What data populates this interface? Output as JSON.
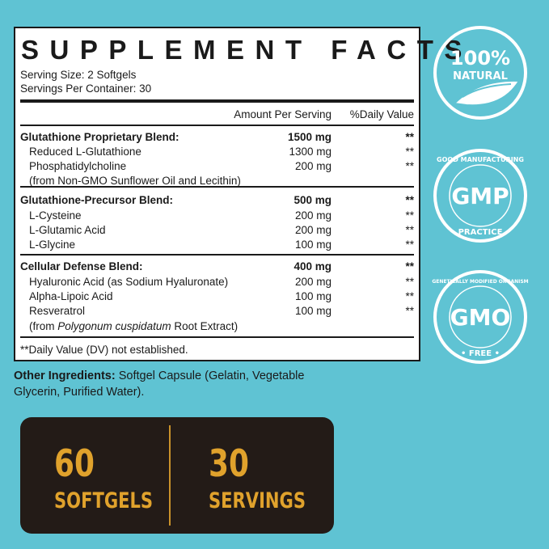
{
  "facts": {
    "title": "SUPPLEMENT FACTS",
    "serving_size": "Serving Size: 2 Softgels",
    "servings_per_container": "Servings Per Container: 30",
    "header_amount": "Amount Per Serving",
    "header_dv": "%Daily Value",
    "rows": [
      {
        "name": "Glutathione Proprietary Blend:",
        "amount": "1500 mg",
        "dv": "**",
        "bold": true
      },
      {
        "name": "Reduced L-Glutathione",
        "amount": "1300 mg",
        "dv": "**"
      },
      {
        "name": "Phosphatidylcholine",
        "amount": "200 mg",
        "dv": "**"
      },
      {
        "name": "(from Non-GMO Sunflower Oil and Lecithin)",
        "amount": "",
        "dv": ""
      },
      {
        "name": "Glutathione-Precursor Blend:",
        "amount": "500 mg",
        "dv": "**",
        "bold": true
      },
      {
        "name": "L-Cysteine",
        "amount": "200 mg",
        "dv": "**"
      },
      {
        "name": "L-Glutamic Acid",
        "amount": "200 mg",
        "dv": "**"
      },
      {
        "name": "L-Glycine",
        "amount": "100 mg",
        "dv": "**"
      },
      {
        "name": "Cellular Defense Blend:",
        "amount": "400 mg",
        "dv": "**",
        "bold": true
      },
      {
        "name": "Hyaluronic Acid (as Sodium Hyaluronate)",
        "amount": "200 mg",
        "dv": "**"
      },
      {
        "name": "Alpha-Lipoic Acid",
        "amount": "100 mg",
        "dv": "**"
      },
      {
        "name": "Resveratrol",
        "amount": "100 mg",
        "dv": "**"
      },
      {
        "name": "(from Polygonum cuspidatum Root Extract)",
        "amount": "",
        "dv": ""
      }
    ],
    "footnote": "**Daily Value (DV) not established."
  },
  "other": {
    "label": "Other Ingredients:",
    "text": " Softgel Capsule (Gelatin, Vegetable Glycerin, Purified Water)."
  },
  "panel": {
    "count1": "60",
    "label1": "SOFTGELS",
    "count2": "30",
    "label2": "SERVINGS"
  },
  "badges": [
    {
      "icon": "leaf-icon",
      "main": "100%",
      "sub": "NATURAL"
    },
    {
      "icon": "gmp-seal-icon",
      "main": "GMP",
      "top": "GOOD MANUFACTURING",
      "bottom": "PRACTICE"
    },
    {
      "icon": "gmo-free-seal-icon",
      "main": "GMO",
      "top": "GENETICALLY MODIFIED ORGANISM",
      "bottom": "FREE"
    }
  ],
  "colors": {
    "background": "#5fc3d3",
    "panel": "#231b17",
    "accent": "#e0a22c"
  }
}
